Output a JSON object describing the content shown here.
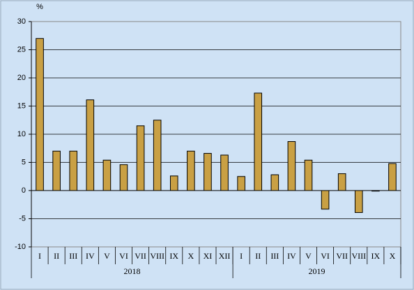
{
  "chart_data": {
    "type": "bar",
    "ylabel": "%",
    "groups": [
      {
        "name": "2018",
        "categories": [
          "I",
          "II",
          "III",
          "IV",
          "V",
          "VI",
          "VII",
          "VIII",
          "IX",
          "X",
          "XI",
          "XII"
        ]
      },
      {
        "name": "2019",
        "categories": [
          "I",
          "II",
          "III",
          "IV",
          "V",
          "VI",
          "VII",
          "VIII",
          "IX",
          "X"
        ]
      }
    ],
    "values": [
      27,
      7,
      7,
      16.1,
      5.4,
      4.6,
      11.5,
      12.5,
      2.6,
      7,
      6.6,
      6.3,
      2.5,
      17.3,
      2.8,
      8.7,
      5.4,
      -3.3,
      3,
      -3.9,
      -0.1,
      4.8
    ],
    "color": "#c9a044",
    "ylim": [
      -10,
      30
    ],
    "yticks": [
      -10,
      -5,
      0,
      5,
      10,
      15,
      20,
      25,
      30
    ],
    "grid": true
  }
}
